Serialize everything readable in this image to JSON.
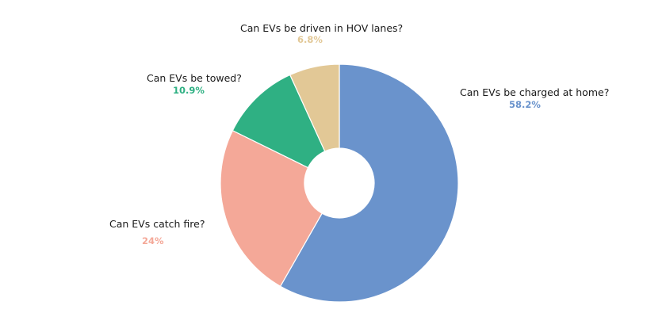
{
  "chart_data": {
    "type": "pie",
    "donut": true,
    "title": "",
    "start_angle_deg": 0,
    "direction": "clockwise",
    "slices": [
      {
        "label": "Can EVs be charged at home?",
        "value": 58.2,
        "value_label": "58.2%",
        "color": "#6a93cc"
      },
      {
        "label": "Can EVs catch fire?",
        "value": 24,
        "value_label": "24%",
        "color": "#f4a898"
      },
      {
        "label": "Can EVs be towed?",
        "value": 10.9,
        "value_label": "10.9%",
        "color": "#2fb083"
      },
      {
        "label": "Can EVs be driven in HOV lanes?",
        "value": 6.8,
        "value_label": "6.8%",
        "color": "#e2c896"
      }
    ]
  }
}
